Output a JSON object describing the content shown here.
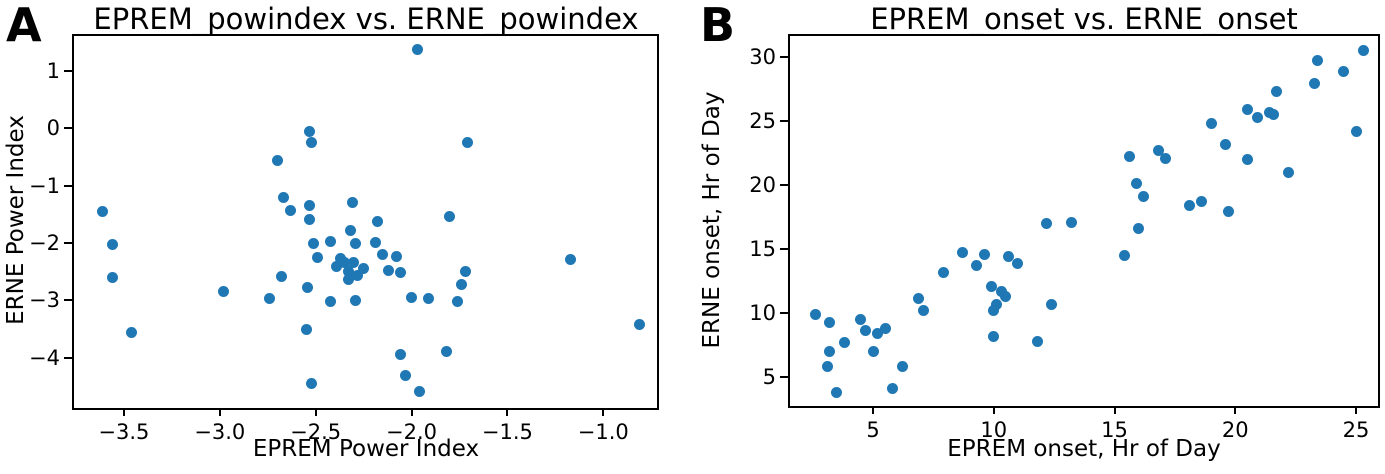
{
  "figure_background": "#ffffff",
  "chart_data": [
    {
      "type": "scatter",
      "panel_label": "A",
      "title": "EPREM_powindex vs. ERNE_powindex",
      "xlabel": "EPREM Power Index",
      "ylabel": "ERNE Power Index",
      "marker_color": "#1f77b4",
      "grid": false,
      "legend": "none",
      "xlim": [
        -3.76,
        -0.72
      ],
      "ylim": [
        -4.88,
        1.61
      ],
      "xtick_values": [
        -3.5,
        -3.0,
        -2.5,
        -2.0,
        -1.5,
        -1.0
      ],
      "xtick_labels": [
        "−3.5",
        "−3.0",
        "−2.5",
        "−2.0",
        "−1.5",
        "−1.0"
      ],
      "ytick_values": [
        1,
        0,
        -1,
        -2,
        -3,
        -4
      ],
      "ytick_labels": [
        "1",
        "0",
        "−1",
        "−2",
        "−3",
        "−4"
      ],
      "points": [
        [
          -3.61,
          -1.45
        ],
        [
          -3.56,
          -2.03
        ],
        [
          -3.56,
          -2.61
        ],
        [
          -3.46,
          -3.57
        ],
        [
          -2.98,
          -2.85
        ],
        [
          -2.74,
          -2.97
        ],
        [
          -2.68,
          -2.59
        ],
        [
          -2.7,
          -0.56
        ],
        [
          -2.53,
          -0.05
        ],
        [
          -2.52,
          -0.25
        ],
        [
          -1.97,
          1.37
        ],
        [
          -2.67,
          -1.21
        ],
        [
          -2.63,
          -1.44
        ],
        [
          -2.53,
          -1.35
        ],
        [
          -2.53,
          -1.59
        ],
        [
          -2.31,
          -1.3
        ],
        [
          -2.32,
          -1.79
        ],
        [
          -2.42,
          -1.98
        ],
        [
          -2.51,
          -2.01
        ],
        [
          -2.49,
          -2.26
        ],
        [
          -2.18,
          -1.63
        ],
        [
          -2.29,
          -2.01
        ],
        [
          -2.19,
          -1.99
        ],
        [
          -2.15,
          -2.2
        ],
        [
          -2.08,
          -2.24
        ],
        [
          -2.12,
          -2.48
        ],
        [
          -2.06,
          -2.52
        ],
        [
          -2.39,
          -2.41
        ],
        [
          -2.35,
          -2.34
        ],
        [
          -2.3,
          -2.34
        ],
        [
          -2.33,
          -2.5
        ],
        [
          -2.28,
          -2.57
        ],
        [
          -2.33,
          -2.64
        ],
        [
          -2.25,
          -2.45
        ],
        [
          -2.37,
          -2.28
        ],
        [
          -2.54,
          -2.78
        ],
        [
          -2.42,
          -3.02
        ],
        [
          -2.29,
          -3.01
        ],
        [
          -2.0,
          -2.95
        ],
        [
          -1.91,
          -2.97
        ],
        [
          -2.55,
          -3.51
        ],
        [
          -2.52,
          -4.45
        ],
        [
          -2.06,
          -3.95
        ],
        [
          -2.03,
          -4.32
        ],
        [
          -1.96,
          -4.6
        ],
        [
          -1.82,
          -3.89
        ],
        [
          -1.71,
          -0.25
        ],
        [
          -1.8,
          -1.54
        ],
        [
          -1.17,
          -2.29
        ],
        [
          -1.72,
          -2.5
        ],
        [
          -1.74,
          -2.73
        ],
        [
          -1.76,
          -3.02
        ],
        [
          -0.81,
          -3.43
        ]
      ]
    },
    {
      "type": "scatter",
      "panel_label": "B",
      "title": "EPREM_onset vs. ERNE_onset",
      "xlabel": "EPREM onset, Hr of Day",
      "ylabel": "ERNE onset, Hr of Day",
      "marker_color": "#1f77b4",
      "grid": false,
      "legend": "none",
      "xlim": [
        1.56,
        25.91
      ],
      "ylim": [
        2.74,
        31.64
      ],
      "xtick_values": [
        5,
        10,
        15,
        20,
        25
      ],
      "xtick_labels": [
        "5",
        "10",
        "15",
        "20",
        "25"
      ],
      "ytick_values": [
        5,
        10,
        15,
        20,
        25,
        30
      ],
      "ytick_labels": [
        "5",
        "10",
        "15",
        "20",
        "25",
        "30"
      ],
      "points": [
        [
          2.6,
          9.9
        ],
        [
          3.2,
          9.3
        ],
        [
          3.8,
          7.7
        ],
        [
          3.2,
          7.0
        ],
        [
          3.1,
          5.8
        ],
        [
          3.5,
          3.8
        ],
        [
          4.5,
          9.5
        ],
        [
          4.7,
          8.6
        ],
        [
          5.2,
          8.4
        ],
        [
          5.5,
          8.8
        ],
        [
          5.0,
          7.0
        ],
        [
          5.8,
          4.1
        ],
        [
          6.2,
          5.8
        ],
        [
          6.9,
          11.1
        ],
        [
          7.1,
          10.2
        ],
        [
          7.9,
          13.2
        ],
        [
          8.7,
          14.7
        ],
        [
          9.3,
          13.7
        ],
        [
          9.6,
          14.6
        ],
        [
          10.6,
          14.4
        ],
        [
          11.0,
          13.9
        ],
        [
          9.9,
          12.1
        ],
        [
          10.3,
          11.7
        ],
        [
          10.5,
          11.3
        ],
        [
          10.1,
          10.7
        ],
        [
          10.0,
          10.2
        ],
        [
          10.0,
          8.2
        ],
        [
          11.8,
          7.8
        ],
        [
          12.4,
          10.7
        ],
        [
          12.2,
          17.0
        ],
        [
          13.2,
          17.1
        ],
        [
          15.4,
          14.5
        ],
        [
          15.6,
          22.2
        ],
        [
          15.9,
          20.1
        ],
        [
          16.2,
          19.1
        ],
        [
          16.0,
          16.6
        ],
        [
          16.8,
          22.7
        ],
        [
          17.1,
          22.1
        ],
        [
          18.1,
          18.4
        ],
        [
          18.6,
          18.7
        ],
        [
          19.0,
          24.8
        ],
        [
          19.6,
          23.2
        ],
        [
          19.7,
          17.9
        ],
        [
          20.5,
          22.0
        ],
        [
          20.5,
          25.9
        ],
        [
          20.9,
          25.3
        ],
        [
          21.4,
          25.7
        ],
        [
          21.6,
          25.5
        ],
        [
          21.7,
          27.3
        ],
        [
          22.2,
          21.0
        ],
        [
          23.4,
          29.7
        ],
        [
          23.3,
          27.9
        ],
        [
          24.5,
          28.9
        ],
        [
          25.3,
          30.5
        ],
        [
          25.0,
          24.2
        ]
      ]
    }
  ]
}
